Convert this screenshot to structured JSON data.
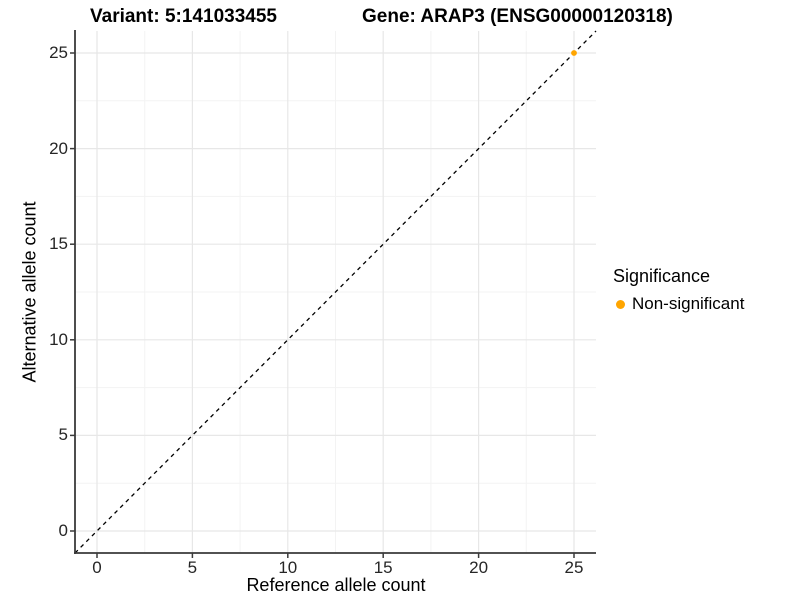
{
  "chart_data": {
    "type": "scatter",
    "title_left": "Variant: 5:141033455",
    "title_right": "Gene: ARAP3 (ENSG00000120318)",
    "xlabel": "Reference allele count",
    "ylabel": "Alternative allele count",
    "xlim": [
      0,
      25
    ],
    "ylim": [
      0,
      25
    ],
    "xticks": [
      0,
      5,
      10,
      15,
      20,
      25
    ],
    "yticks": [
      0,
      5,
      10,
      15,
      20,
      25
    ],
    "grid": "major and minor gridlines, light gray on white panel",
    "reference_line": {
      "type": "identity y=x",
      "style": "dashed",
      "color": "#000000"
    },
    "series": [
      {
        "name": "Non-significant",
        "color": "#FFA500",
        "points": [
          {
            "x": 25,
            "y": 25
          }
        ]
      }
    ],
    "legend": {
      "title": "Significance",
      "position": "right",
      "entries": [
        {
          "label": "Non-significant",
          "color": "#FFA500"
        }
      ]
    }
  },
  "colors": {
    "background": "#ffffff",
    "grid_major": "#e7e7e7",
    "grid_minor": "#f3f3f3",
    "axis_line": "#3a3a3a",
    "tick_text": "#262626"
  }
}
